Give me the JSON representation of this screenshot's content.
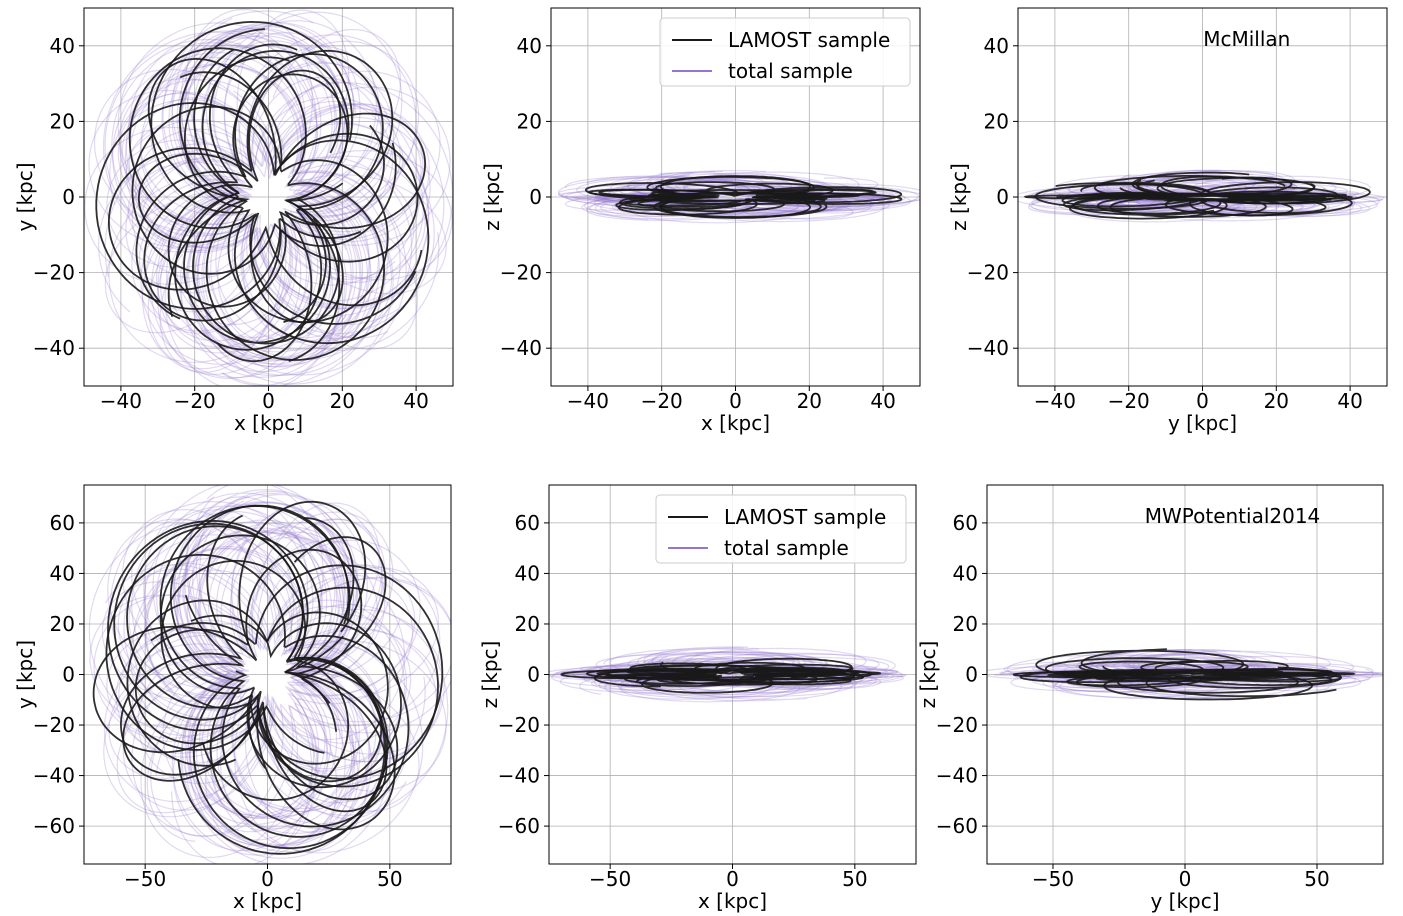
{
  "chart_data": [
    {
      "id": "p1",
      "type": "line",
      "projection": "xy",
      "xlabel": "x [kpc]",
      "ylabel": "y [kpc]",
      "xlim": [
        -50,
        50
      ],
      "ylim": [
        -50,
        50
      ],
      "xticks": [
        -40,
        -20,
        0,
        20,
        40
      ],
      "yticks": [
        -40,
        -20,
        0,
        20,
        40
      ],
      "grid": true,
      "series": [
        {
          "name": "LAMOST sample",
          "color": "#1a1a1a"
        },
        {
          "name": "total sample",
          "color": "#9575cd"
        }
      ]
    },
    {
      "id": "p2",
      "type": "line",
      "projection": "xz",
      "xlabel": "x [kpc]",
      "ylabel": "z [kpc]",
      "xlim": [
        -50,
        50
      ],
      "ylim": [
        -50,
        50
      ],
      "xticks": [
        -40,
        -20,
        0,
        20,
        40
      ],
      "yticks": [
        -40,
        -20,
        0,
        20,
        40
      ],
      "grid": true,
      "legend": "top-right",
      "legend_entries": [
        "LAMOST sample",
        "total sample"
      ],
      "series": [
        {
          "name": "LAMOST sample",
          "color": "#1a1a1a"
        },
        {
          "name": "total sample",
          "color": "#9575cd"
        }
      ]
    },
    {
      "id": "p3",
      "type": "line",
      "projection": "yz",
      "xlabel": "y [kpc]",
      "ylabel": "z [kpc]",
      "xlim": [
        -50,
        50
      ],
      "ylim": [
        -50,
        50
      ],
      "xticks": [
        -40,
        -20,
        0,
        20,
        40
      ],
      "yticks": [
        -40,
        -20,
        0,
        20,
        40
      ],
      "grid": true,
      "annotation": "McMillan",
      "series": [
        {
          "name": "LAMOST sample",
          "color": "#1a1a1a"
        },
        {
          "name": "total sample",
          "color": "#9575cd"
        }
      ]
    },
    {
      "id": "p4",
      "type": "line",
      "projection": "xy",
      "xlabel": "x [kpc]",
      "ylabel": "y [kpc]",
      "xlim": [
        -75,
        75
      ],
      "ylim": [
        -75,
        75
      ],
      "xticks": [
        -50,
        0,
        50
      ],
      "yticks": [
        -60,
        -40,
        -20,
        0,
        20,
        40,
        60
      ],
      "grid": true,
      "series": [
        {
          "name": "LAMOST sample",
          "color": "#1a1a1a"
        },
        {
          "name": "total sample",
          "color": "#9575cd"
        }
      ]
    },
    {
      "id": "p5",
      "type": "line",
      "projection": "xz",
      "xlabel": "x [kpc]",
      "ylabel": "z [kpc]",
      "xlim": [
        -75,
        75
      ],
      "ylim": [
        -75,
        75
      ],
      "xticks": [
        -50,
        0,
        50
      ],
      "yticks": [
        -60,
        -40,
        -20,
        0,
        20,
        40,
        60
      ],
      "grid": true,
      "legend": "top-right",
      "legend_entries": [
        "LAMOST sample",
        "total sample"
      ],
      "series": [
        {
          "name": "LAMOST sample",
          "color": "#1a1a1a"
        },
        {
          "name": "total sample",
          "color": "#9575cd"
        }
      ]
    },
    {
      "id": "p6",
      "type": "line",
      "projection": "yz",
      "xlabel": "y [kpc]",
      "ylabel": "z [kpc]",
      "xlim": [
        -75,
        75
      ],
      "ylim": [
        -75,
        75
      ],
      "xticks": [
        -50,
        0,
        50
      ],
      "yticks": [
        -60,
        -40,
        -20,
        0,
        20,
        40,
        60
      ],
      "grid": true,
      "annotation": "MWPotential2014",
      "series": [
        {
          "name": "LAMOST sample",
          "color": "#1a1a1a"
        },
        {
          "name": "total sample",
          "color": "#9575cd"
        }
      ]
    }
  ]
}
